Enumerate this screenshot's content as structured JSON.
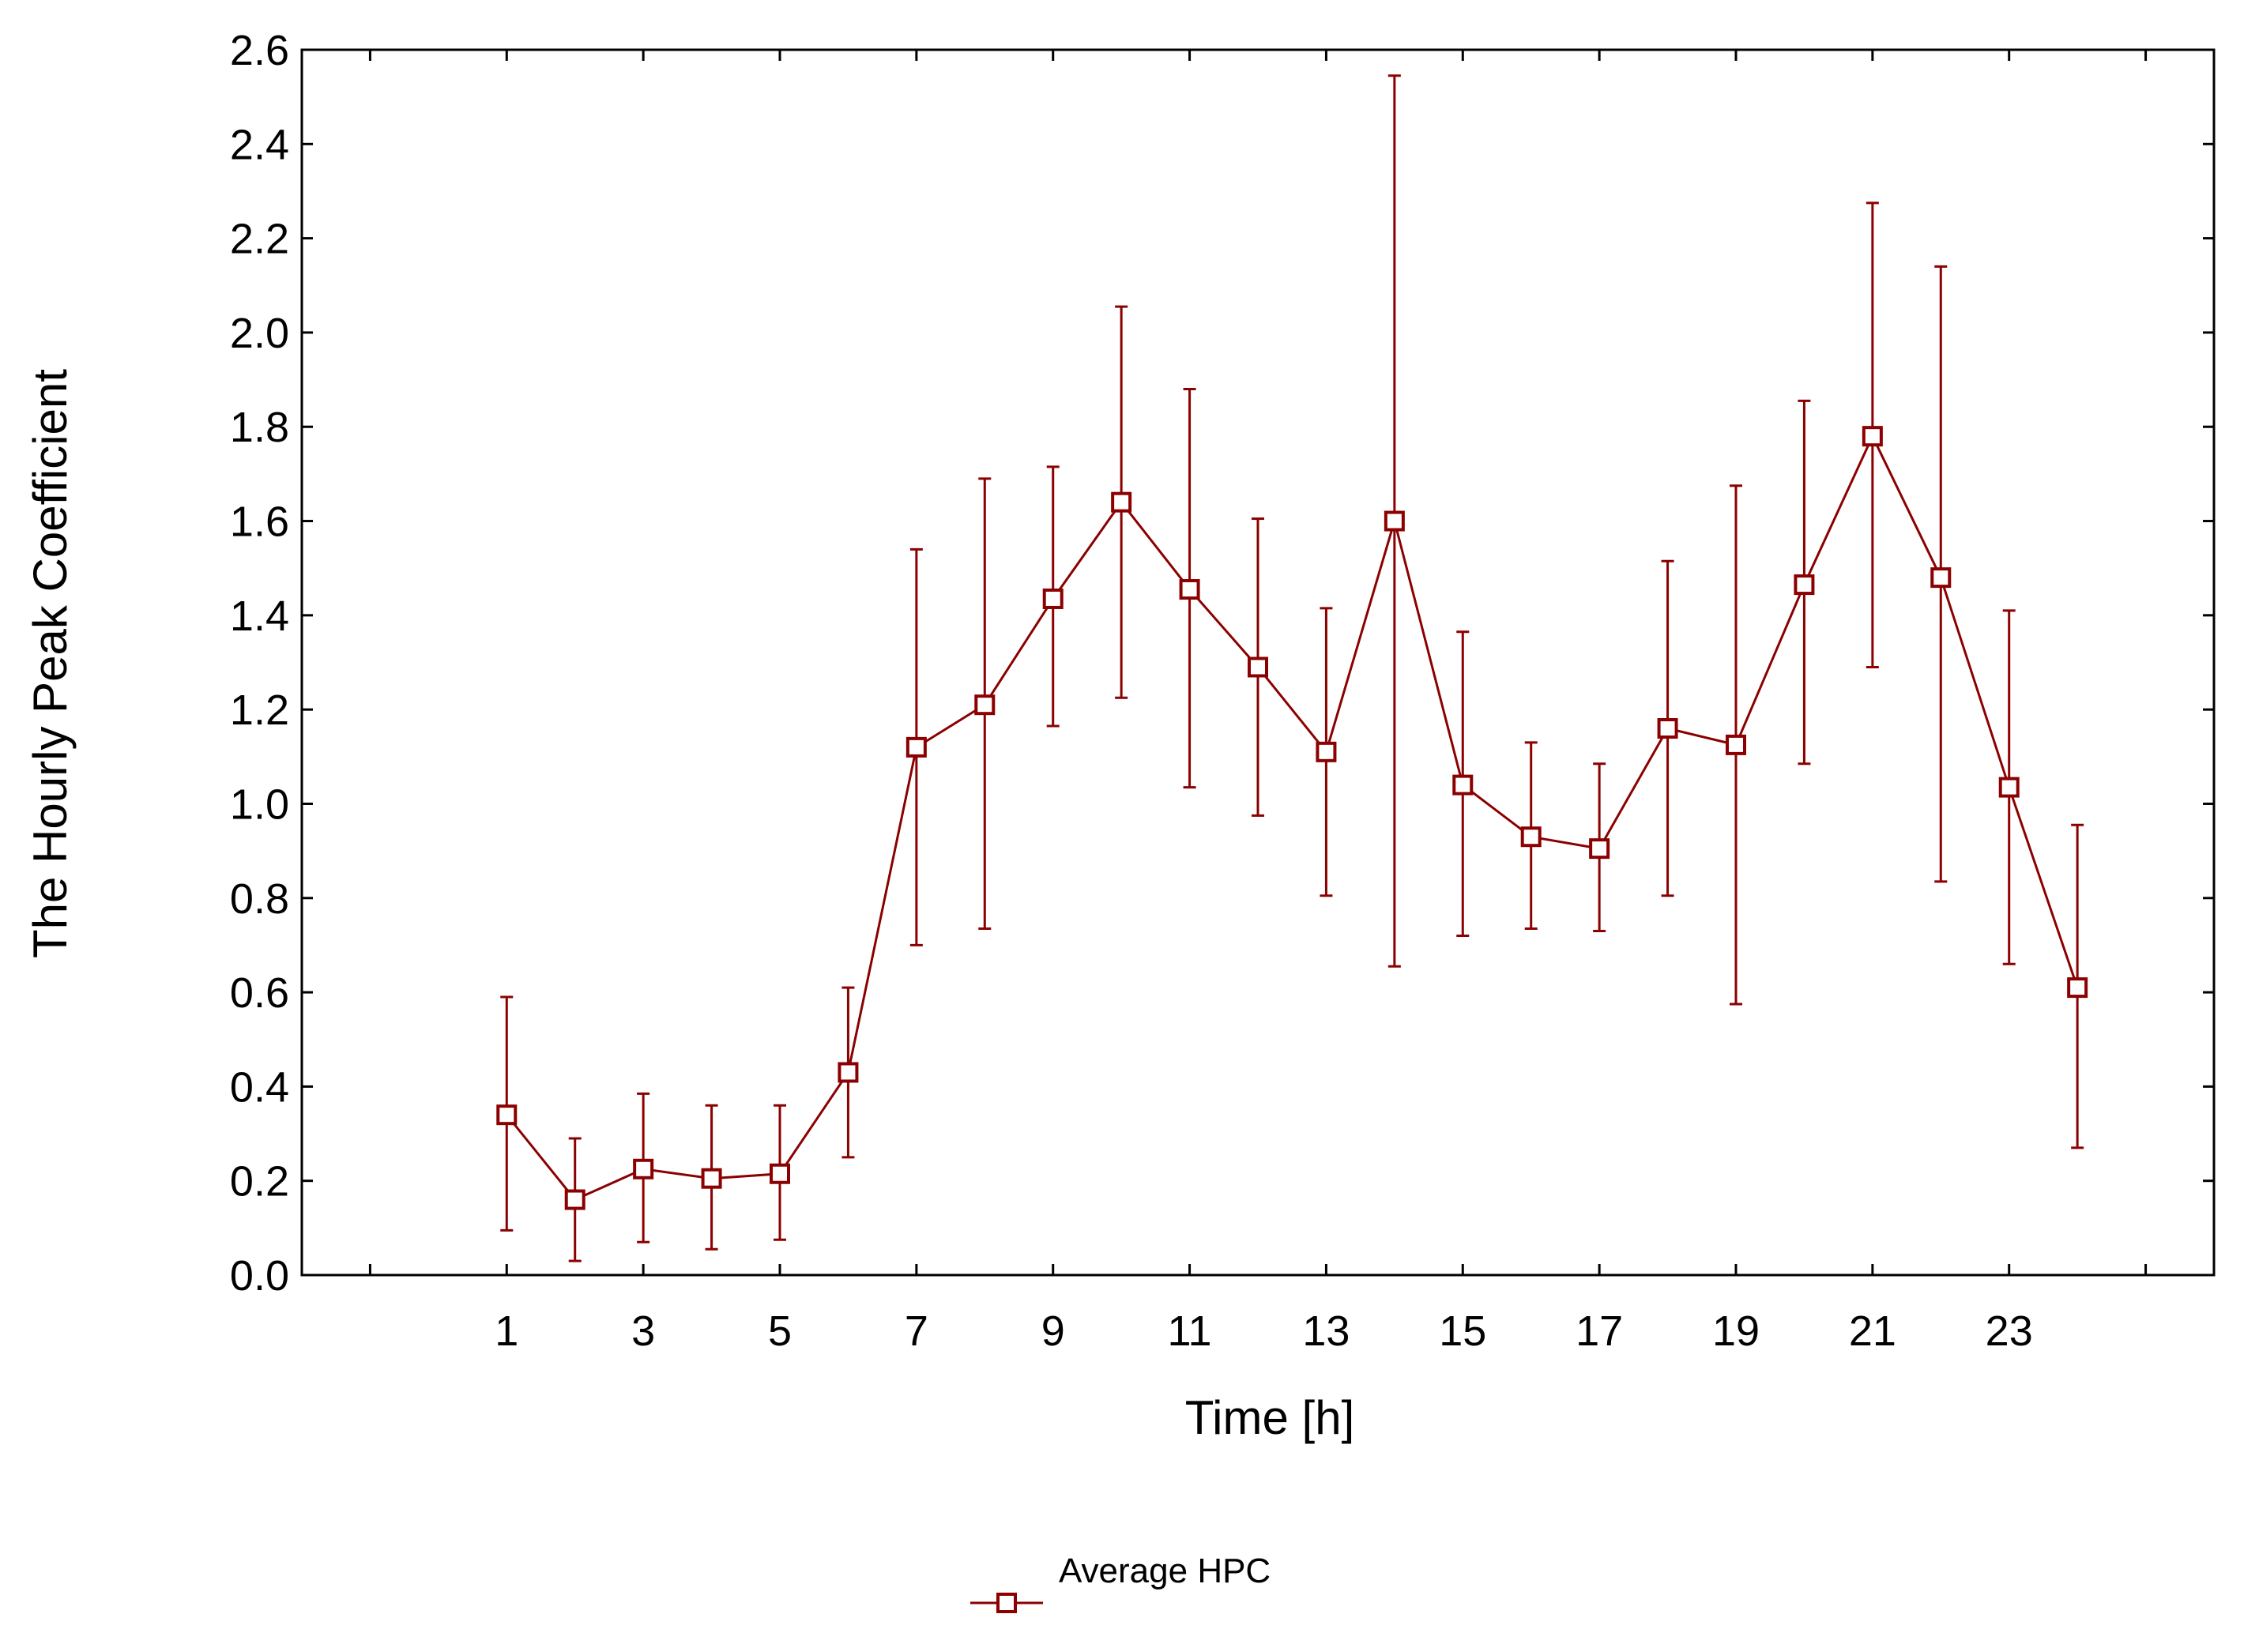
{
  "chart_data": {
    "type": "line",
    "title": "",
    "xlabel": "Time [h]",
    "ylabel": "The Hourly Peak Coefficient",
    "xlim": [
      -2,
      26
    ],
    "ylim": [
      0,
      2.6
    ],
    "x_tick_labels": [
      "1",
      "3",
      "5",
      "7",
      "9",
      "11",
      "13",
      "15",
      "17",
      "19",
      "21",
      "23"
    ],
    "y_tick_labels": [
      "0.0",
      "0.2",
      "0.4",
      "0.6",
      "0.8",
      "1.0",
      "1.2",
      "1.4",
      "1.6",
      "1.8",
      "2.0",
      "2.2",
      "2.4",
      "2.6"
    ],
    "x_minor_ticks": [
      -1,
      1,
      3,
      5,
      7,
      9,
      11,
      13,
      15,
      17,
      19,
      21,
      23,
      25
    ],
    "grid": false,
    "legend_position": "bottom-center",
    "series": [
      {
        "name": "Average HPC",
        "color": "#8b0000",
        "marker": "open-square",
        "x": [
          1,
          2,
          3,
          4,
          5,
          6,
          7,
          8,
          9,
          10,
          11,
          12,
          13,
          14,
          15,
          16,
          17,
          18,
          19,
          20,
          21,
          22,
          23,
          24
        ],
        "y": [
          0.34,
          0.16,
          0.225,
          0.205,
          0.215,
          0.43,
          1.12,
          1.21,
          1.435,
          1.64,
          1.455,
          1.29,
          1.11,
          1.6,
          1.04,
          0.93,
          0.905,
          1.16,
          1.125,
          1.465,
          1.78,
          1.48,
          1.035,
          0.61
        ],
        "error_low": [
          0.095,
          0.03,
          0.07,
          0.055,
          0.075,
          0.25,
          0.7,
          0.735,
          1.165,
          1.225,
          1.035,
          0.975,
          0.805,
          0.655,
          0.72,
          0.735,
          0.73,
          0.805,
          0.575,
          1.085,
          1.29,
          0.835,
          0.66,
          0.27
        ],
        "error_high": [
          0.59,
          0.29,
          0.385,
          0.36,
          0.36,
          0.61,
          1.54,
          1.69,
          1.715,
          2.055,
          1.88,
          1.605,
          1.415,
          2.545,
          1.365,
          1.13,
          1.085,
          1.515,
          1.675,
          1.855,
          2.275,
          2.14,
          1.41,
          0.955
        ]
      }
    ]
  }
}
